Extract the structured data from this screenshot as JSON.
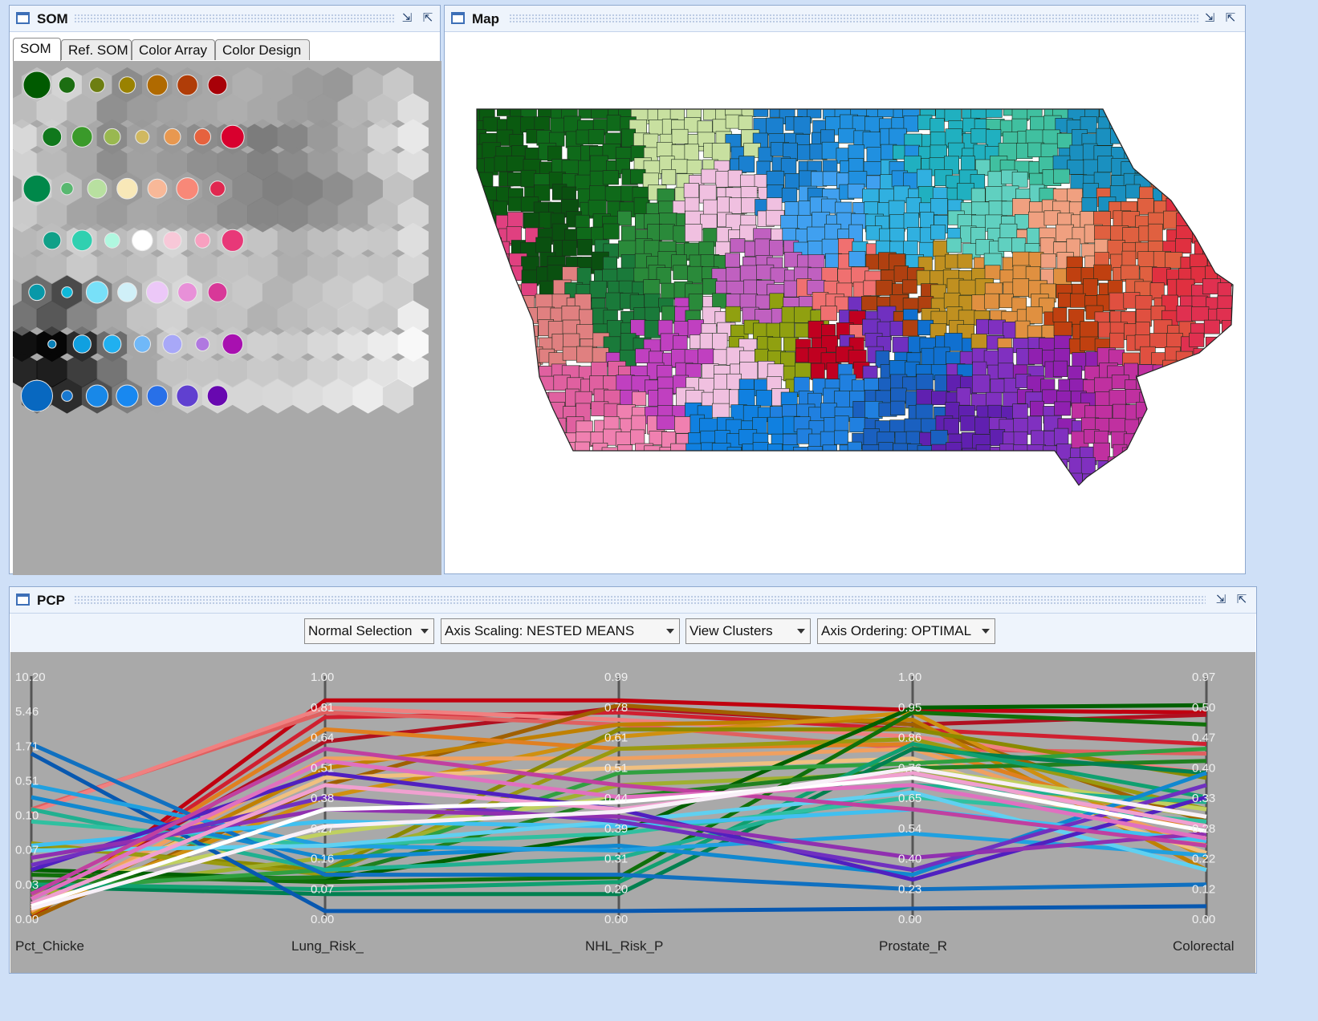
{
  "som": {
    "title": "SOM",
    "tabs": [
      "SOM",
      "Ref. SOM",
      "Color Array",
      "Color Design"
    ],
    "active_tab": 0,
    "node_colors": [
      [
        "#005a00",
        null,
        "#1c6e12",
        null,
        "#6d7e12",
        null,
        "#9a8200",
        null,
        "#b06a00",
        null,
        "#b03d08",
        null,
        "#a80008"
      ],
      [
        null,
        "#10781c",
        null,
        "#3a9a2a",
        null,
        "#99b850",
        null,
        "#d0b860",
        null,
        "#e89850",
        null,
        "#e6623e",
        null,
        "#d8002e"
      ],
      [
        "#00884a",
        null,
        "#58b870",
        null,
        "#b8e0a0",
        null,
        "#f8e8b8",
        null,
        "#f8b898",
        null,
        "#f88878",
        null,
        "#e02850"
      ],
      [
        null,
        "#10a088",
        null,
        "#30d0b0",
        null,
        "#b0f8e0",
        null,
        "#ffffff",
        null,
        "#f8c8d8",
        null,
        "#f8a0c0",
        null,
        "#e83878"
      ],
      [
        "#0898a8",
        null,
        "#10b8d8",
        null,
        "#78e0f8",
        null,
        "#d0f0f8",
        null,
        "#ecc8f8",
        null,
        "#e890d8",
        null,
        "#d83898"
      ],
      [
        null,
        "#0880b8",
        null,
        "#10a0e0",
        null,
        "#20b0f0",
        null,
        "#70b8f8",
        null,
        "#a8a8f8",
        null,
        "#b078e0",
        null,
        "#a810b0"
      ],
      [
        "#0868c0",
        null,
        "#1878d0",
        null,
        "#1888e8",
        null,
        "#1888f0",
        null,
        "#2870e8",
        null,
        "#6040d0",
        null,
        "#6808b0"
      ]
    ],
    "node_sizes": [
      [
        1.0,
        null,
        0.6,
        null,
        0.55,
        null,
        0.6,
        null,
        0.75,
        null,
        0.75,
        null,
        0.7
      ],
      [
        null,
        0.7,
        null,
        0.75,
        null,
        0.6,
        null,
        0.5,
        null,
        0.6,
        null,
        0.6,
        null,
        0.85
      ],
      [
        1.0,
        null,
        0.45,
        null,
        0.7,
        null,
        0.75,
        null,
        0.7,
        null,
        0.8,
        null,
        0.55
      ],
      [
        null,
        0.65,
        null,
        0.75,
        null,
        0.55,
        null,
        0.75,
        null,
        0.65,
        null,
        0.55,
        null,
        0.8
      ],
      [
        0.6,
        null,
        0.4,
        null,
        0.8,
        null,
        0.7,
        null,
        0.8,
        null,
        0.7,
        null,
        0.7
      ],
      [
        null,
        0.3,
        null,
        0.65,
        null,
        0.65,
        null,
        0.6,
        null,
        0.7,
        null,
        0.5,
        null,
        0.75
      ],
      [
        1.15,
        null,
        0.4,
        null,
        0.8,
        null,
        0.8,
        null,
        0.75,
        null,
        0.8,
        null,
        0.75
      ]
    ],
    "cell_shades": [
      [
        "#c0c0c0",
        "#d4d4d4",
        "#b8b8b8",
        "#8c8c8c",
        "#9a9a9a",
        "#a2a2a2",
        "#a8a8a8",
        "#b0b0b0",
        "#a8a8a8",
        "#9c9c9c",
        "#989898",
        "#b8b8b8",
        "#c8c8c8"
      ],
      [
        "#d8d8d8",
        "#bcbcbc",
        "#a8a8a8",
        "#8a8a8a",
        "#a0a0a0",
        "#989898",
        "#8c8c8c",
        "#888888",
        "#7c7c7c",
        "#868686",
        "#9a9a9a",
        "#b0b0b0",
        "#d4d4d4",
        "#e8e8e8"
      ],
      [
        "#d0d0d0",
        "#bebebe",
        "#a4a4a4",
        "#9a9a9a",
        "#a8a8a8",
        "#a2a2a2",
        "#9a9a9a",
        "#8a8a8a",
        "#808080",
        "#828282",
        "#8e8e8e",
        "#a0a0a0",
        "#c2c2c2"
      ],
      [
        "#b8b8b8",
        "#bdbdbd",
        "#cfcfcf",
        "#bcbcbc",
        "#c4c4c4",
        "#d6d6d6",
        "#bdbdbd",
        "#c8c8c8",
        "#c4c4c4",
        "#b0b0b0",
        "#bebebe",
        "#cacaca",
        "#c8c8c8",
        "#dedede"
      ],
      [
        "#6c6c6c",
        "#4a4a4a",
        "#808080",
        "#aaaaaa",
        "#c8c8c8",
        "#d8d8d8",
        "#c2c2c2",
        "#c8c8c8",
        "#b4b4b4",
        "#c0c0c0",
        "#cacaca",
        "#d4d4d4",
        "#cccccc"
      ],
      [
        "#101010",
        "#060606",
        "#2c2c2c",
        "#6c6c6c",
        "#a6a6a6",
        "#c8c8c8",
        "#cacaca",
        "#c8c8c8",
        "#d0d0d0",
        "#cccccc",
        "#d8d8d8",
        "#e2e2e2",
        "#ececec",
        "#f8f8f8"
      ],
      [
        "#606060",
        "#2c2c2c",
        "#505050",
        "#7e7e7e",
        "#a8a8a8",
        "#cccccc",
        "#d6d6d6",
        "#d6d6d6",
        "#d8d8d8",
        "#dcdcdc",
        "#e2e2e2",
        "#ececec",
        "#d8d8d8"
      ]
    ]
  },
  "map": {
    "title": "Map"
  },
  "pcp": {
    "title": "PCP",
    "dropdowns": [
      "Normal Selection",
      "Axis Scaling: NESTED MEANS",
      "View Clusters",
      "Axis Ordering: OPTIMAL"
    ],
    "axes": [
      {
        "name": "Pct_Chicke",
        "ticks": [
          "10.20",
          "5.46",
          "1.71",
          "0.51",
          "0.10",
          "0.07",
          "0.03",
          "0.00"
        ]
      },
      {
        "name": "Lung_Risk_",
        "ticks": [
          "1.00",
          "0.81",
          "0.64",
          "0.51",
          "0.38",
          "0.27",
          "0.16",
          "0.07",
          "0.00"
        ]
      },
      {
        "name": "NHL_Risk_P",
        "ticks": [
          "0.99",
          "0.78",
          "0.61",
          "0.51",
          "0.44",
          "0.39",
          "0.31",
          "0.20",
          "0.00"
        ]
      },
      {
        "name": "Prostate_R",
        "ticks": [
          "1.00",
          "0.95",
          "0.86",
          "0.76",
          "0.65",
          "0.54",
          "0.40",
          "0.23",
          "0.00"
        ]
      },
      {
        "name": "Colorectal",
        "ticks": [
          "0.97",
          "0.50",
          "0.47",
          "0.40",
          "0.33",
          "0.28",
          "0.22",
          "0.12",
          "0.00"
        ]
      }
    ],
    "polylines": [
      {
        "color": "#c00010",
        "values": [
          0.0,
          0.9,
          0.9,
          0.86,
          0.85
        ]
      },
      {
        "color": "#d02030",
        "values": [
          0.02,
          0.83,
          0.85,
          0.78,
          0.72
        ]
      },
      {
        "color": "#b01020",
        "values": [
          0.05,
          0.73,
          0.87,
          0.8,
          0.84
        ]
      },
      {
        "color": "#e06060",
        "values": [
          0.45,
          0.85,
          0.8,
          0.7,
          0.68
        ]
      },
      {
        "color": "#f08080",
        "values": [
          0.44,
          0.87,
          0.82,
          0.75,
          0.6
        ]
      },
      {
        "color": "#a06000",
        "values": [
          0.0,
          0.55,
          0.88,
          0.8,
          0.4
        ]
      },
      {
        "color": "#c08000",
        "values": [
          0.02,
          0.62,
          0.8,
          0.82,
          0.2
        ]
      },
      {
        "color": "#d09010",
        "values": [
          0.03,
          0.5,
          0.75,
          0.85,
          0.25
        ]
      },
      {
        "color": "#e08020",
        "values": [
          0.04,
          0.78,
          0.7,
          0.72,
          0.35
        ]
      },
      {
        "color": "#f0a060",
        "values": [
          0.03,
          0.66,
          0.66,
          0.7,
          0.3
        ]
      },
      {
        "color": "#f0c080",
        "values": [
          0.05,
          0.58,
          0.62,
          0.66,
          0.27
        ]
      },
      {
        "color": "#8a8a00",
        "values": [
          0.3,
          0.2,
          0.78,
          0.78,
          0.58
        ]
      },
      {
        "color": "#9a9a10",
        "values": [
          0.31,
          0.18,
          0.7,
          0.74,
          0.45
        ]
      },
      {
        "color": "#a0b030",
        "values": [
          0.1,
          0.25,
          0.55,
          0.6,
          0.42
        ]
      },
      {
        "color": "#c0d060",
        "values": [
          0.12,
          0.35,
          0.5,
          0.62,
          0.45
        ]
      },
      {
        "color": "#006000",
        "values": [
          0.2,
          0.16,
          0.35,
          0.87,
          0.88
        ]
      },
      {
        "color": "#10700a",
        "values": [
          0.18,
          0.15,
          0.17,
          0.85,
          0.8
        ]
      },
      {
        "color": "#208020",
        "values": [
          0.15,
          0.17,
          0.5,
          0.62,
          0.65
        ]
      },
      {
        "color": "#30a040",
        "values": [
          0.12,
          0.2,
          0.6,
          0.64,
          0.7
        ]
      },
      {
        "color": "#008050",
        "values": [
          0.13,
          0.1,
          0.1,
          0.7,
          0.6
        ]
      },
      {
        "color": "#10a070",
        "values": [
          0.14,
          0.12,
          0.15,
          0.72,
          0.5
        ]
      },
      {
        "color": "#20b090",
        "values": [
          0.45,
          0.2,
          0.25,
          0.55,
          0.48
        ]
      },
      {
        "color": "#30c0a0",
        "values": [
          0.4,
          0.3,
          0.35,
          0.5,
          0.4
        ]
      },
      {
        "color": "#1070c0",
        "values": [
          0.72,
          0.18,
          0.18,
          0.12,
          0.14
        ]
      },
      {
        "color": "#0858b0",
        "values": [
          0.68,
          0.03,
          0.03,
          0.04,
          0.05
        ]
      },
      {
        "color": "#1088d0",
        "values": [
          0.5,
          0.25,
          0.3,
          0.18,
          0.6
        ]
      },
      {
        "color": "#20a0e0",
        "values": [
          0.55,
          0.3,
          0.28,
          0.35,
          0.26
        ]
      },
      {
        "color": "#40c0f0",
        "values": [
          0.3,
          0.4,
          0.38,
          0.45,
          0.32
        ]
      },
      {
        "color": "#60d0f0",
        "values": [
          0.28,
          0.3,
          0.4,
          0.52,
          0.2
        ]
      },
      {
        "color": "#5020c0",
        "values": [
          0.2,
          0.6,
          0.45,
          0.16,
          0.5
        ]
      },
      {
        "color": "#7030c0",
        "values": [
          0.22,
          0.5,
          0.4,
          0.2,
          0.55
        ]
      },
      {
        "color": "#9030b0",
        "values": [
          0.25,
          0.45,
          0.42,
          0.25,
          0.35
        ]
      },
      {
        "color": "#c040a0",
        "values": [
          0.1,
          0.7,
          0.55,
          0.45,
          0.3
        ]
      },
      {
        "color": "#e070c0",
        "values": [
          0.08,
          0.65,
          0.5,
          0.55,
          0.33
        ]
      },
      {
        "color": "#f0a0d0",
        "values": [
          0.06,
          0.55,
          0.45,
          0.6,
          0.38
        ]
      },
      {
        "color": "#ffffff",
        "values": [
          0.05,
          0.45,
          0.48,
          0.58,
          0.36
        ]
      },
      {
        "color": "#f8f0f8",
        "values": [
          0.04,
          0.38,
          0.44,
          0.62,
          0.42
        ]
      }
    ]
  }
}
